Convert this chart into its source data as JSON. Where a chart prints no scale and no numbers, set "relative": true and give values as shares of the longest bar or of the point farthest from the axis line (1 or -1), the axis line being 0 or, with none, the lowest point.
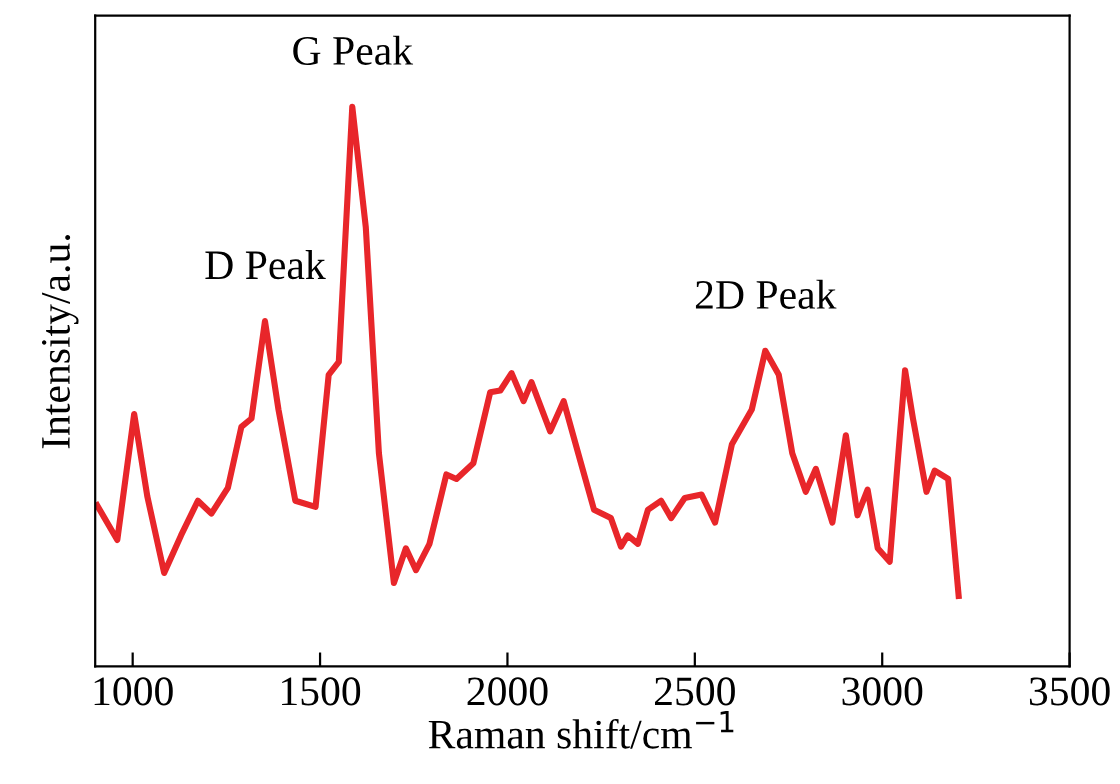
{
  "chart_data": {
    "type": "line",
    "relative": true,
    "xlabel": "Raman shift/cm$^{−1}$",
    "ylabel": "Intensity/a.u.",
    "xlim": [
      900,
      3500
    ],
    "xticks": [
      1000,
      1500,
      2000,
      2500,
      3000,
      3500
    ],
    "grid": false,
    "legend": false,
    "marker": "none",
    "line_style": "solid",
    "annotations": [
      {
        "text": "D Peak",
        "x": 1353,
        "y": 0.617
      },
      {
        "text": "G Peak",
        "x": 1586,
        "y": 1.0
      },
      {
        "text": "2D Peak",
        "x": 2688,
        "y": 0.564
      }
    ],
    "series": [
      {
        "color": "#e8262a",
        "x": [
          905,
          959,
          1004,
          1039,
          1084,
          1129,
          1174,
          1210,
          1254,
          1290,
          1317,
          1353,
          1389,
          1434,
          1488,
          1523,
          1550,
          1586,
          1622,
          1657,
          1697,
          1729,
          1756,
          1792,
          1837,
          1864,
          1909,
          1954,
          1981,
          2011,
          2043,
          2064,
          2114,
          2150,
          2195,
          2231,
          2276,
          2303,
          2321,
          2348,
          2375,
          2410,
          2437,
          2473,
          2518,
          2554,
          2599,
          2652,
          2688,
          2724,
          2760,
          2796,
          2823,
          2867,
          2903,
          2934,
          2961,
          2988,
          3020,
          3061,
          3082,
          3118,
          3140,
          3176,
          3204
        ],
        "values": [
          0.288,
          0.226,
          0.451,
          0.304,
          0.167,
          0.234,
          0.296,
          0.273,
          0.319,
          0.428,
          0.443,
          0.617,
          0.459,
          0.296,
          0.285,
          0.521,
          0.544,
          1.0,
          0.785,
          0.381,
          0.149,
          0.211,
          0.172,
          0.219,
          0.343,
          0.335,
          0.363,
          0.49,
          0.493,
          0.524,
          0.474,
          0.508,
          0.42,
          0.474,
          0.366,
          0.28,
          0.265,
          0.214,
          0.234,
          0.219,
          0.28,
          0.296,
          0.265,
          0.301,
          0.307,
          0.257,
          0.397,
          0.459,
          0.564,
          0.521,
          0.381,
          0.312,
          0.353,
          0.257,
          0.413,
          0.27,
          0.316,
          0.211,
          0.187,
          0.529,
          0.443,
          0.312,
          0.35,
          0.335,
          0.126
        ]
      }
    ]
  }
}
